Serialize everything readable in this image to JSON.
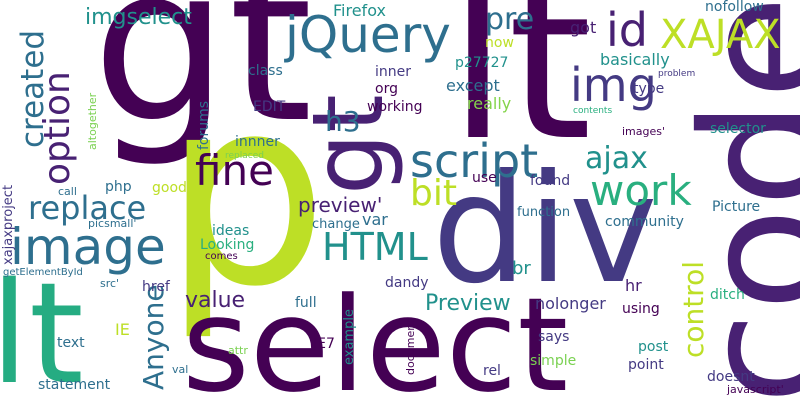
{
  "words": [
    {
      "id": "gt",
      "text": "gt",
      "color": "#440154"
    },
    {
      "id": "p",
      "text": "p",
      "color": "#bddf26"
    },
    {
      "id": "code",
      "text": "code",
      "color": "#482173"
    },
    {
      "id": "lt-big",
      "text": "lt",
      "color": "#440154"
    },
    {
      "id": "div",
      "text": "div",
      "color": "#443a83"
    },
    {
      "id": "select",
      "text": "select",
      "color": "#440154"
    },
    {
      "id": "lt",
      "text": "lt",
      "color": "#25ac82"
    },
    {
      "id": "gt-small",
      "text": "gt",
      "color": "#482173"
    },
    {
      "id": "jquery",
      "text": "jQuery",
      "color": "#2e6f8e"
    },
    {
      "id": "xajax",
      "text": "XAJAX",
      "color": "#bddf26"
    },
    {
      "id": "image",
      "text": "image",
      "color": "#2e6f8e"
    },
    {
      "id": "img",
      "text": "img",
      "color": "#443a83"
    },
    {
      "id": "id",
      "text": "id",
      "color": "#482173"
    },
    {
      "id": "script",
      "text": "script",
      "color": "#2e6f8e"
    },
    {
      "id": "fine",
      "text": "fine",
      "color": "#440154"
    },
    {
      "id": "work",
      "text": "work",
      "color": "#29af7f"
    },
    {
      "id": "option",
      "text": "option",
      "color": "#482173"
    },
    {
      "id": "created",
      "text": "created",
      "color": "#2e6f8e"
    },
    {
      "id": "replace",
      "text": "replace",
      "color": "#2e6f8e"
    },
    {
      "id": "ajax",
      "text": "ajax",
      "color": "#21918c"
    },
    {
      "id": "bit",
      "text": "bit",
      "color": "#bddf26"
    },
    {
      "id": "html",
      "text": "HTML",
      "color": "#21918c"
    },
    {
      "id": "anyone",
      "text": "Anyone",
      "color": "#2e6f8e"
    },
    {
      "id": "control",
      "text": "control",
      "color": "#bddf26"
    },
    {
      "id": "pre",
      "text": "pre",
      "color": "#2e6f8e"
    },
    {
      "id": "h3",
      "text": "h3",
      "color": "#2e6f8e"
    },
    {
      "id": "imgselect",
      "text": "imgselect",
      "color": "#21918c"
    },
    {
      "id": "value",
      "text": "value",
      "color": "#482173"
    },
    {
      "id": "preview-cap",
      "text": "Preview",
      "color": "#21918c"
    },
    {
      "id": "preview-q",
      "text": "preview'",
      "color": "#482173"
    },
    {
      "id": "firefox",
      "text": "Firefox",
      "color": "#21918c"
    },
    {
      "id": "nofollow",
      "text": "nofollow",
      "color": "#2e6f8e"
    },
    {
      "id": "got",
      "text": "got",
      "color": "#482173"
    },
    {
      "id": "now",
      "text": "now",
      "color": "#bddf26"
    },
    {
      "id": "class",
      "text": "class",
      "color": "#2e6f8e"
    },
    {
      "id": "inner",
      "text": "inner",
      "color": "#443a83"
    },
    {
      "id": "p27727",
      "text": "p27727",
      "color": "#21918c"
    },
    {
      "id": "basically",
      "text": "basically",
      "color": "#21918c"
    },
    {
      "id": "org",
      "text": "org",
      "color": "#440154"
    },
    {
      "id": "except",
      "text": "except",
      "color": "#2e6f8e"
    },
    {
      "id": "type",
      "text": "type",
      "color": "#443a83"
    },
    {
      "id": "edit",
      "text": "EDIT",
      "color": "#443a83"
    },
    {
      "id": "working",
      "text": "working",
      "color": "#440154"
    },
    {
      "id": "really",
      "text": "really",
      "color": "#84d44b"
    },
    {
      "id": "problem",
      "text": "problem",
      "color": "#443a83"
    },
    {
      "id": "contents",
      "text": "contents",
      "color": "#29af7f"
    },
    {
      "id": "altogether",
      "text": "altogether",
      "color": "#7ad151"
    },
    {
      "id": "forums",
      "text": "forums",
      "color": "#2e6f8e"
    },
    {
      "id": "innner",
      "text": "innner",
      "color": "#2e6f8e"
    },
    {
      "id": "replaced",
      "text": "replaced",
      "color": "#7ad151"
    },
    {
      "id": "images",
      "text": "images'",
      "color": "#440154"
    },
    {
      "id": "selector",
      "text": "selector",
      "color": "#21918c"
    },
    {
      "id": "community",
      "text": "community",
      "color": "#2e6f8e"
    },
    {
      "id": "xajaxproject",
      "text": "xajaxproject",
      "color": "#443a83"
    },
    {
      "id": "php",
      "text": "php",
      "color": "#2e6f8e"
    },
    {
      "id": "good",
      "text": "good",
      "color": "#bddf26"
    },
    {
      "id": "call",
      "text": "call",
      "color": "#2e6f8e"
    },
    {
      "id": "use",
      "text": "use",
      "color": "#440154"
    },
    {
      "id": "found",
      "text": "found",
      "color": "#443a83"
    },
    {
      "id": "var",
      "text": "var",
      "color": "#2e6f8e"
    },
    {
      "id": "function",
      "text": "function",
      "color": "#2e6f8e"
    },
    {
      "id": "picture",
      "text": "Picture",
      "color": "#2e6f8e"
    },
    {
      "id": "picsmall",
      "text": "picsmall'",
      "color": "#2e6f8e"
    },
    {
      "id": "change",
      "text": "change",
      "color": "#2e6f8e"
    },
    {
      "id": "ideas",
      "text": "ideas",
      "color": "#21918c"
    },
    {
      "id": "looking",
      "text": "Looking",
      "color": "#29af7f"
    },
    {
      "id": "getelementbyid",
      "text": "getElementById",
      "color": "#2e6f8e"
    },
    {
      "id": "comes",
      "text": "comes",
      "color": "#440154"
    },
    {
      "id": "src",
      "text": "src'",
      "color": "#2e6f8e"
    },
    {
      "id": "href",
      "text": "href",
      "color": "#443a83"
    },
    {
      "id": "br",
      "text": "br",
      "color": "#21918c"
    },
    {
      "id": "dandy",
      "text": "dandy",
      "color": "#443a83"
    },
    {
      "id": "hr",
      "text": "hr",
      "color": "#482173"
    },
    {
      "id": "nolonger",
      "text": "nolonger",
      "color": "#443a83"
    },
    {
      "id": "ditch",
      "text": "ditch",
      "color": "#29af7f"
    },
    {
      "id": "full",
      "text": "full",
      "color": "#2e6f8e"
    },
    {
      "id": "using",
      "text": "using",
      "color": "#440154"
    },
    {
      "id": "ie",
      "text": "IE",
      "color": "#bddf26"
    },
    {
      "id": "text",
      "text": "text",
      "color": "#2e6f8e"
    },
    {
      "id": "example",
      "text": "example",
      "color": "#21918c"
    },
    {
      "id": "says",
      "text": "says",
      "color": "#443a83"
    },
    {
      "id": "post",
      "text": "post",
      "color": "#21918c"
    },
    {
      "id": "attr",
      "text": "attr",
      "color": "#7ad151"
    },
    {
      "id": "ie7",
      "text": "IE7",
      "color": "#440154"
    },
    {
      "id": "simple",
      "text": "simple",
      "color": "#7ad151"
    },
    {
      "id": "point",
      "text": "point",
      "color": "#443a83"
    },
    {
      "id": "statement",
      "text": "statement",
      "color": "#2e6f8e"
    },
    {
      "id": "val",
      "text": "val",
      "color": "#2e6f8e"
    },
    {
      "id": "rel",
      "text": "rel",
      "color": "#443a83"
    },
    {
      "id": "document",
      "text": "document",
      "color": "#440154"
    },
    {
      "id": "doesnt",
      "text": "doesnt",
      "color": "#443a83"
    },
    {
      "id": "javascript",
      "text": "javascript'",
      "color": "#440154"
    }
  ]
}
